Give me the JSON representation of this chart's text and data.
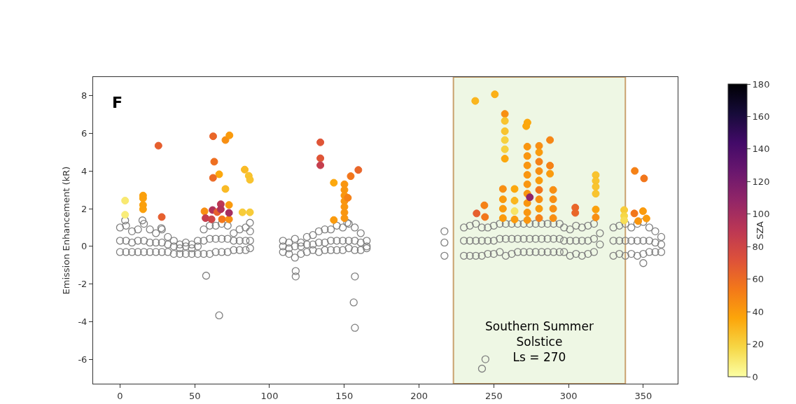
{
  "chart_data": {
    "type": "scatter",
    "ylabel": "Emission Enhancement (kR)",
    "clabel": "SZA",
    "annotations": [
      "F"
    ],
    "xlim": [
      -18,
      373
    ],
    "xticks": [
      0,
      50,
      100,
      150,
      200,
      250,
      300,
      350
    ],
    "ylim": [
      -7.3,
      9.0
    ],
    "yticks": [
      -6,
      -4,
      -2,
      0,
      2,
      4,
      6,
      8
    ],
    "clim": [
      0,
      180
    ],
    "cticks": [
      0,
      20,
      40,
      60,
      80,
      100,
      120,
      140,
      160,
      180
    ],
    "grid": false,
    "marker": "circle",
    "bands": [
      {
        "axis": "x",
        "from": 223,
        "to": 338,
        "label": "Southern Summer\nSolstice\nLs = 270",
        "color": "#eef7e4"
      }
    ],
    "series": [
      {
        "color": "#808080",
        "x": [
          0,
          0,
          0,
          4,
          4,
          4,
          8,
          8,
          8,
          12,
          12,
          12,
          16,
          16,
          16,
          20,
          20,
          20,
          24,
          24,
          24,
          28,
          28,
          28,
          32,
          32,
          32,
          36,
          36,
          36,
          40,
          40,
          40,
          44,
          44,
          44,
          48,
          48,
          48,
          52,
          52,
          52,
          56,
          56,
          56,
          60,
          60,
          60,
          64,
          64,
          64,
          68,
          68,
          68,
          72,
          72,
          72,
          76,
          76,
          76,
          80,
          80,
          80,
          84,
          84,
          84,
          87,
          87,
          87,
          109,
          109,
          109,
          113,
          113,
          113,
          117,
          117,
          117,
          121,
          121,
          121,
          125,
          125,
          125,
          129,
          129,
          129,
          133,
          133,
          133,
          137,
          137,
          137,
          141,
          141,
          141,
          145,
          145,
          145,
          149,
          149,
          149,
          153,
          153,
          153,
          157,
          157,
          157,
          161,
          161,
          161,
          165,
          165,
          165,
          217,
          217,
          217,
          230,
          230,
          230,
          234,
          234,
          234,
          238,
          238,
          238,
          242,
          242,
          242,
          246,
          246,
          246,
          250,
          250,
          250,
          254,
          254,
          254,
          258,
          258,
          258,
          262,
          262,
          262,
          266,
          266,
          266,
          270,
          270,
          270,
          274,
          274,
          274,
          278,
          278,
          278,
          282,
          282,
          282,
          286,
          286,
          286,
          290,
          290,
          290,
          294,
          294,
          294,
          297,
          297,
          297,
          301,
          301,
          301,
          305,
          305,
          305,
          309,
          309,
          309,
          313,
          313,
          313,
          317,
          317,
          317,
          321,
          321,
          330,
          330,
          330,
          334,
          334,
          334,
          338,
          338,
          338,
          342,
          342,
          342,
          346,
          346,
          346,
          350,
          350,
          350,
          354,
          354,
          354,
          358,
          358,
          358,
          362,
          362,
          362,
          3.4,
          15,
          27.6,
          86.9,
          152,
          57.6,
          66.3,
          117.5,
          117.5,
          157.1,
          156.3,
          157.1,
          244.4,
          242.1,
          350
        ],
        "values": [
          1.0,
          0.3,
          -0.3,
          1.1,
          0.3,
          -0.3,
          0.8,
          0.2,
          -0.3,
          0.9,
          0.3,
          -0.3,
          1.2,
          0.3,
          -0.3,
          0.9,
          0.2,
          -0.3,
          0.7,
          0.2,
          -0.3,
          0.9,
          0.2,
          -0.3,
          0.5,
          0.1,
          -0.3,
          0.3,
          0.0,
          -0.4,
          0.1,
          -0.1,
          -0.4,
          0.2,
          0.0,
          -0.4,
          0.1,
          -0.1,
          -0.4,
          0.3,
          0.0,
          -0.4,
          0.9,
          0.3,
          -0.4,
          1.1,
          0.4,
          -0.4,
          1.1,
          0.4,
          -0.3,
          1.2,
          0.4,
          -0.3,
          1.1,
          0.4,
          -0.3,
          0.7,
          0.3,
          -0.2,
          0.9,
          0.3,
          -0.2,
          1.0,
          0.3,
          -0.2,
          0.8,
          0.3,
          -0.1,
          0.3,
          0.0,
          -0.3,
          0.2,
          -0.1,
          -0.4,
          0.4,
          0.0,
          -0.6,
          0.2,
          0.0,
          -0.4,
          0.5,
          0.1,
          -0.3,
          0.6,
          0.1,
          -0.2,
          0.8,
          0.2,
          -0.3,
          0.9,
          0.2,
          -0.2,
          0.9,
          0.3,
          -0.2,
          1.1,
          0.3,
          -0.2,
          1.0,
          0.3,
          -0.2,
          1.2,
          0.3,
          -0.1,
          1.0,
          0.3,
          -0.2,
          0.7,
          0.2,
          -0.2,
          0.3,
          0.0,
          -0.1,
          0.8,
          0.2,
          -0.5,
          1.0,
          0.3,
          -0.5,
          1.1,
          0.3,
          -0.5,
          1.2,
          0.3,
          -0.5,
          1.0,
          0.3,
          -0.5,
          1.0,
          0.3,
          -0.4,
          1.1,
          0.3,
          -0.4,
          1.2,
          0.4,
          -0.3,
          1.2,
          0.4,
          -0.5,
          1.2,
          0.4,
          -0.4,
          1.2,
          0.4,
          -0.3,
          1.2,
          0.4,
          -0.3,
          1.2,
          0.4,
          -0.3,
          1.2,
          0.4,
          -0.3,
          1.2,
          0.4,
          -0.3,
          1.2,
          0.4,
          -0.3,
          1.2,
          0.4,
          -0.3,
          1.2,
          0.4,
          -0.3,
          1.0,
          0.3,
          -0.3,
          0.9,
          0.3,
          -0.5,
          1.1,
          0.3,
          -0.4,
          1.0,
          0.3,
          -0.5,
          1.1,
          0.3,
          -0.4,
          1.2,
          0.4,
          -0.3,
          0.7,
          0.1,
          1.0,
          0.3,
          -0.5,
          1.1,
          0.3,
          -0.4,
          1.2,
          0.3,
          -0.5,
          1.0,
          0.3,
          -0.4,
          1.2,
          0.3,
          -0.5,
          1.3,
          0.3,
          -0.4,
          1.0,
          0.3,
          -0.3,
          0.8,
          0.2,
          -0.3,
          0.5,
          0.1,
          -0.3,
          1.38,
          1.38,
          0.97,
          1.25,
          1.25,
          -1.56,
          -3.67,
          -1.31,
          -1.6,
          -1.6,
          -2.98,
          -4.33,
          -6.0,
          -6.5,
          -0.89
        ]
      },
      {
        "x": [
          3.4,
          3.4,
          15.4,
          15.4,
          15.4,
          15.4,
          25.7,
          27.9,
          62.3,
          70.5,
          73.2,
          63,
          66.3,
          62.2,
          70.5,
          56.5,
          61.9,
          67.4,
          72.9,
          57.2,
          61.2,
          68.2,
          72.9,
          72.9,
          65,
          67.4,
          83.4,
          86.1,
          86.9,
          81.9,
          86.9,
          134,
          134,
          134,
          143,
          143,
          150.1,
          150.1,
          150.1,
          150.1,
          150.1,
          150.1,
          150.1,
          152.4,
          154.3,
          159.4,
          237.6,
          250.7,
          257.4,
          257.4,
          257.4,
          257.4,
          257.4,
          257.4,
          272.5,
          271.7,
          272.4,
          272.4,
          272.4,
          272.4,
          272.4,
          272.4,
          272.4,
          272.4,
          272.4,
          280.3,
          280.3,
          280.3,
          280.3,
          280.3,
          280.3,
          280.3,
          280.3,
          280.3,
          287.6,
          287.6,
          287.6,
          289.7,
          289.7,
          289.7,
          289.7,
          256.1,
          256.1,
          256.1,
          256.1,
          263.9,
          263.9,
          263.9,
          263.9,
          243.7,
          238.5,
          244.1,
          274.1,
          304.5,
          304.5,
          318.2,
          318.2,
          318.2,
          318.2,
          318.2,
          318.2,
          337.2,
          337.2,
          337.2,
          344.3,
          350.5,
          344,
          349.8,
          352.1,
          346.6
        ],
        "values": [
          2.43,
          1.68,
          2.7,
          2.55,
          2.2,
          1.97,
          5.35,
          1.56,
          5.85,
          5.65,
          5.9,
          4.5,
          3.83,
          3.64,
          3.05,
          1.86,
          1.93,
          2.24,
          2.2,
          1.5,
          1.44,
          1.44,
          1.44,
          1.78,
          1.82,
          1.97,
          4.08,
          3.75,
          3.54,
          1.81,
          1.81,
          5.53,
          4.68,
          4.31,
          3.38,
          1.4,
          3.3,
          3.0,
          2.7,
          2.4,
          2.1,
          1.8,
          1.5,
          2.58,
          3.73,
          4.06,
          7.73,
          8.08,
          7.04,
          6.67,
          6.12,
          5.65,
          5.16,
          4.66,
          6.58,
          6.39,
          5.3,
          4.8,
          4.3,
          3.8,
          3.3,
          2.8,
          2.3,
          1.8,
          1.4,
          5.34,
          5.0,
          4.5,
          4.0,
          3.5,
          3.0,
          2.5,
          2.0,
          1.5,
          5.65,
          4.29,
          3.86,
          3.0,
          2.5,
          2.0,
          1.5,
          3.05,
          2.5,
          2.0,
          1.5,
          3.05,
          2.43,
          1.87,
          1.43,
          2.18,
          1.75,
          1.56,
          2.61,
          2.06,
          1.78,
          3.79,
          3.48,
          3.17,
          2.8,
          1.96,
          1.54,
          1.93,
          1.62,
          1.38,
          4.01,
          3.61,
          1.75,
          1.87,
          1.48,
          1.34
        ],
        "colors": [
          "#f8e86e",
          "#f8ec78",
          "#fba10c",
          "#fba10c",
          "#fba10c",
          "#fba10c",
          "#e55c35",
          "#e55c35",
          "#e96430",
          "#f78f17",
          "#fa9a0f",
          "#ef6f21",
          "#fca70c",
          "#ec6928",
          "#fab61f",
          "#f78f17",
          "#b2325a",
          "#bc3754",
          "#fa9a0f",
          "#c53f4f",
          "#cd4547",
          "#f2761b",
          "#f78f17",
          "#a72d5f",
          "#e55c35",
          "#b2325a",
          "#fab61f",
          "#f9c02a",
          "#f9c02a",
          "#f8c932",
          "#f8c932",
          "#df5438",
          "#df5438",
          "#c53f4f",
          "#fca70c",
          "#fa9a0f",
          "#f99513",
          "#f99513",
          "#f99513",
          "#f99513",
          "#f99513",
          "#f99513",
          "#f99513",
          "#f57f19",
          "#f2761b",
          "#e96430",
          "#fbb218",
          "#fbad13",
          "#f78f17",
          "#f9c02a",
          "#f9c02a",
          "#f7d03c",
          "#f7d03c",
          "#fca70c",
          "#fca70c",
          "#fca70c",
          "#f99513",
          "#f99513",
          "#f99513",
          "#f99513",
          "#f99513",
          "#f99513",
          "#f99513",
          "#f99513",
          "#f99513",
          "#f78f17",
          "#fa9a0f",
          "#f57f19",
          "#f78f17",
          "#fa9a0f",
          "#f2761b",
          "#f78f17",
          "#fa9a0f",
          "#f57f19",
          "#f68518",
          "#f57f19",
          "#fa9a0f",
          "#f78f17",
          "#f78f17",
          "#f78f17",
          "#f78f17",
          "#f78f17",
          "#fa9a0f",
          "#fa9a0f",
          "#fa9a0f",
          "#fca70c",
          "#fbb218",
          "#f7e360",
          "#fa9a0f",
          "#f57f19",
          "#e55c35",
          "#f2761b",
          "#902567",
          "#e96430",
          "#e96430",
          "#f9c02a",
          "#f9c02a",
          "#f9c02a",
          "#f9c02a",
          "#fba10c",
          "#f78f17",
          "#f8c932",
          "#f6d746",
          "#f7dc52",
          "#f57f19",
          "#f2761b",
          "#f2761b",
          "#fa9a0f",
          "#fa9a0f",
          "#f99513"
        ],
        "cvalues": [
          10,
          8,
          38,
          38,
          38,
          38,
          65,
          65,
          62,
          45,
          40,
          58,
          35,
          60,
          28,
          45,
          95,
          90,
          40,
          85,
          80,
          55,
          45,
          100,
          65,
          95,
          28,
          25,
          25,
          22,
          22,
          70,
          70,
          85,
          35,
          40,
          42,
          42,
          42,
          42,
          42,
          42,
          42,
          50,
          55,
          62,
          30,
          32,
          45,
          25,
          25,
          20,
          20,
          35,
          35,
          35,
          42,
          42,
          42,
          42,
          42,
          42,
          42,
          42,
          42,
          45,
          40,
          50,
          45,
          40,
          55,
          45,
          40,
          50,
          48,
          50,
          40,
          45,
          45,
          45,
          45,
          45,
          40,
          40,
          40,
          35,
          30,
          12,
          40,
          50,
          65,
          55,
          110,
          62,
          62,
          25,
          25,
          25,
          25,
          38,
          45,
          22,
          18,
          15,
          50,
          55,
          55,
          40,
          40,
          42
        ]
      }
    ]
  }
}
